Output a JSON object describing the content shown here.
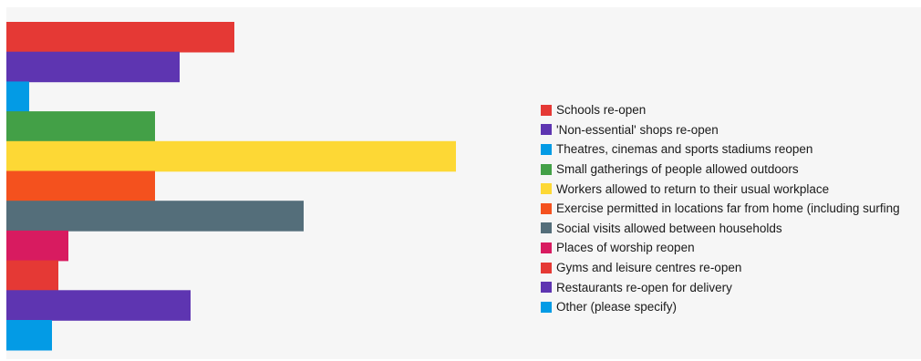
{
  "chart_data": {
    "type": "bar",
    "orientation": "horizontal",
    "categories": [
      "Schools re-open",
      "'Non-essential' shops re-open",
      "Theatres, cinemas and sports stadiums reopen",
      "Small gatherings of people allowed outdoors",
      "Workers allowed to return to their usual workplace",
      "Exercise permitted in locations far from home (including surfing",
      "Social visits allowed between households",
      "Places of worship reopen",
      "Gyms and leisure centres re-open",
      "Restaurants re-open for delivery",
      "Other (please specify)"
    ],
    "values": [
      250,
      190,
      25,
      163,
      493,
      163,
      326,
      68,
      57,
      202,
      50
    ],
    "colors": [
      "#e53935",
      "#5e35b1",
      "#039be5",
      "#43a047",
      "#fdd835",
      "#f4511e",
      "#546e7a",
      "#d81b60",
      "#e53935",
      "#5e35b1",
      "#039be5"
    ],
    "xlim": [
      0,
      1000
    ],
    "legend_position": "right",
    "grid": false
  }
}
